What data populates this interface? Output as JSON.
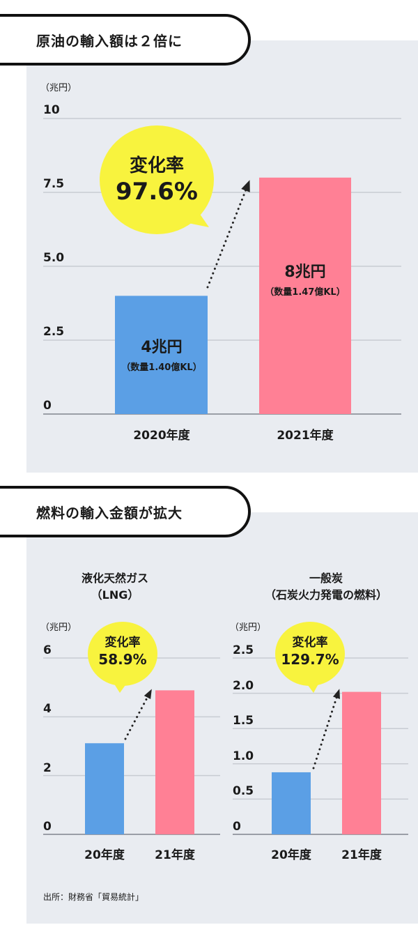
{
  "sections": [
    {
      "title": "原油の輸入額は２倍に"
    },
    {
      "title": "燃料の輸入金額が拡大"
    }
  ],
  "colors": {
    "bar_2020": "#5b9fe5",
    "bar_2021": "#ff8095",
    "bubble": "#f8f33e",
    "grid": "#c8ccd2",
    "panel": "#e9ecf1"
  },
  "chart_data": [
    {
      "type": "bar",
      "title": "原油の輸入額は２倍に",
      "unit": "（兆円）",
      "categories": [
        "2020年度",
        "2021年度"
      ],
      "values": [
        4,
        8
      ],
      "ylim": [
        0,
        10
      ],
      "yticks": [
        "0",
        "2.5",
        "5.0",
        "7.5",
        "10"
      ],
      "bar_labels": [
        {
          "main": "4兆円",
          "sub": "（数量1.40億KL）"
        },
        {
          "main": "8兆円",
          "sub": "（数量1.47億KL）"
        }
      ],
      "annotation": {
        "label": "変化率",
        "value": "97.6%"
      }
    },
    {
      "type": "bar",
      "subtitle": [
        "液化天然ガス",
        "（LNG）"
      ],
      "unit": "（兆円）",
      "categories": [
        "20年度",
        "21年度"
      ],
      "values": [
        3.1,
        4.9
      ],
      "ylim": [
        0,
        6
      ],
      "yticks": [
        "0",
        "2",
        "4",
        "6"
      ],
      "annotation": {
        "label": "変化率",
        "value": "58.9%"
      }
    },
    {
      "type": "bar",
      "subtitle": [
        "一般炭",
        "（石炭火力発電の燃料）"
      ],
      "unit": "（兆円）",
      "categories": [
        "20年度",
        "21年度"
      ],
      "values": [
        0.88,
        2.02
      ],
      "ylim": [
        0,
        2.5
      ],
      "yticks": [
        "0",
        "0.5",
        "1.0",
        "1.5",
        "2.0",
        "2.5"
      ],
      "annotation": {
        "label": "変化率",
        "value": "129.7%"
      }
    }
  ],
  "source": "出所：財務省「貿易統計」"
}
